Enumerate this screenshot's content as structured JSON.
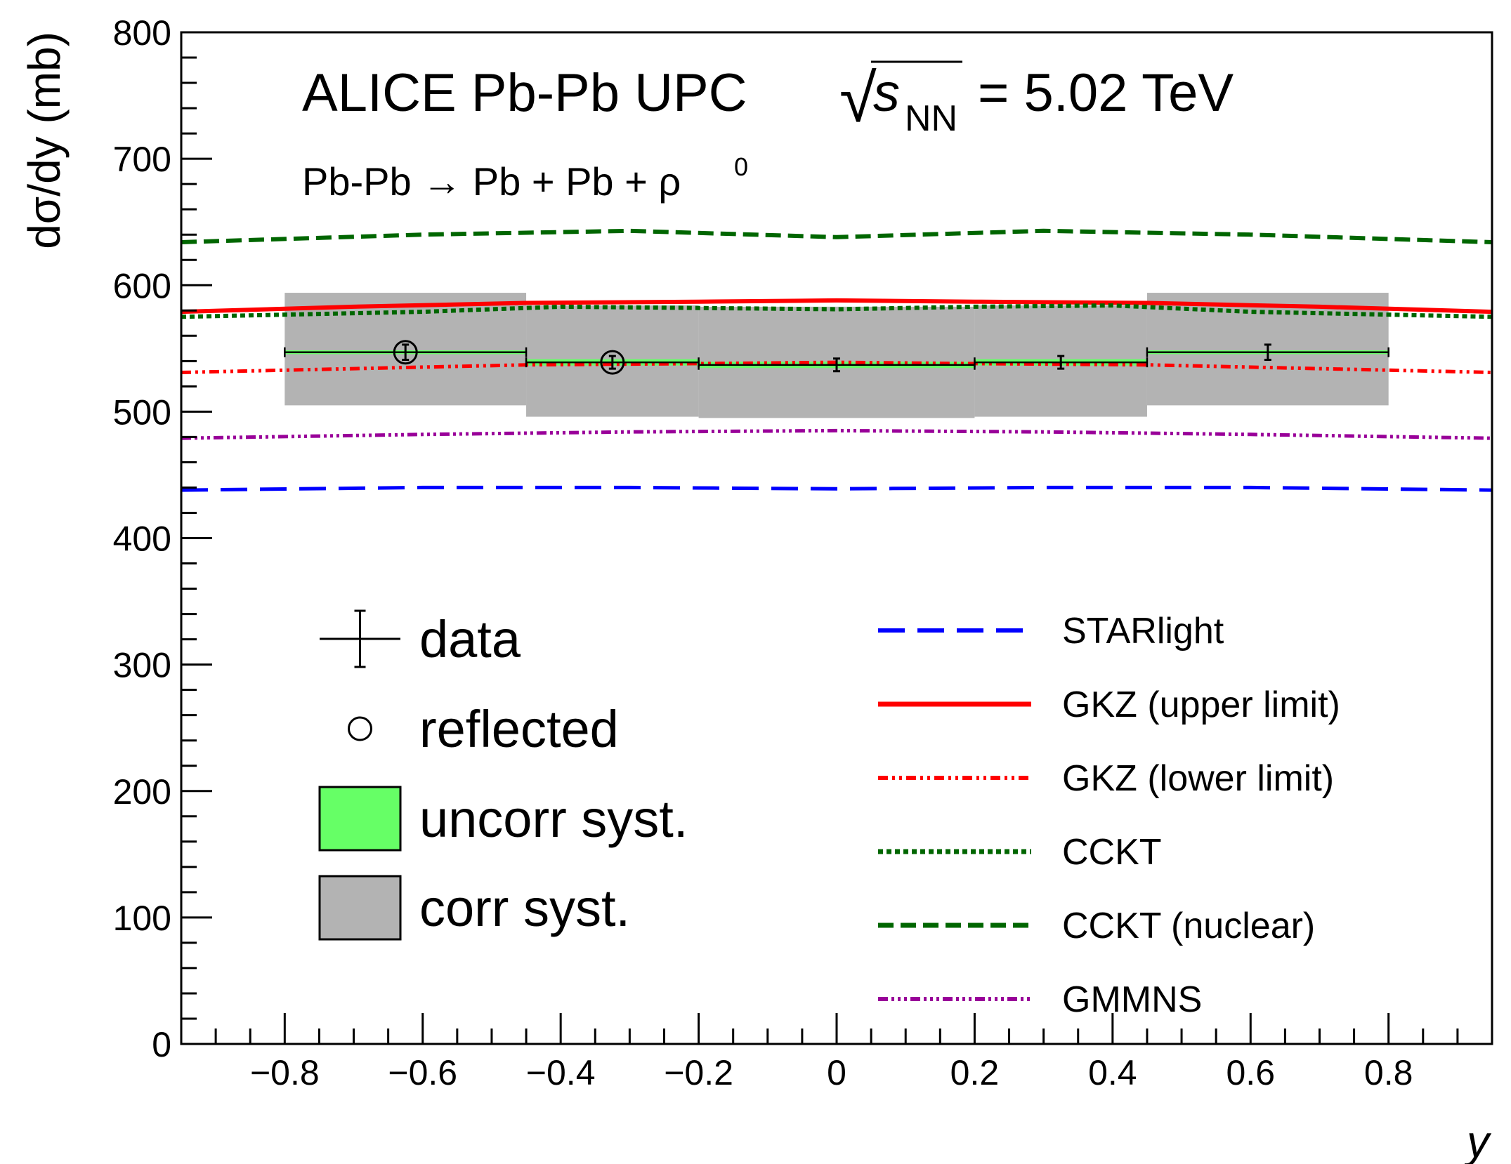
{
  "chart_data": {
    "type": "line",
    "title_main": "ALICE Pb-Pb UPC",
    "title_energy": "= 5.02 TeV",
    "title_sqrt_symbol": "√",
    "title_s": "s",
    "title_nn": "NN",
    "subtitle_main": "Pb-Pb → Pb + Pb + ρ",
    "subtitle_sup": "0",
    "xlabel": "y",
    "ylabel": "dσ/dy (mb)",
    "xlim": [
      -0.95,
      0.95
    ],
    "ylim": [
      0,
      800
    ],
    "x_tick_labels": [
      "−0.8",
      "−0.6",
      "−0.4",
      "−0.2",
      "0",
      "0.2",
      "0.4",
      "0.6",
      "0.8"
    ],
    "x_tick_values": [
      -0.8,
      -0.6,
      -0.4,
      -0.2,
      0,
      0.2,
      0.4,
      0.6,
      0.8
    ],
    "y_tick_labels": [
      "0",
      "100",
      "200",
      "300",
      "400",
      "500",
      "600",
      "700",
      "800"
    ],
    "y_tick_values": [
      0,
      100,
      200,
      300,
      400,
      500,
      600,
      700,
      800
    ],
    "data_points": [
      {
        "x": -0.625,
        "xlo": -0.8,
        "xhi": -0.45,
        "y": 547,
        "stat": 6,
        "uncorr": 1.5,
        "corr_lo": 505,
        "corr_hi": 594,
        "reflected": true
      },
      {
        "x": -0.325,
        "xlo": -0.45,
        "xhi": -0.2,
        "y": 539,
        "stat": 5,
        "uncorr": 2.5,
        "corr_lo": 496,
        "corr_hi": 584,
        "reflected": true
      },
      {
        "x": 0.0,
        "xlo": -0.2,
        "xhi": 0.2,
        "y": 537,
        "stat": 5,
        "uncorr": 2.5,
        "corr_lo": 495,
        "corr_hi": 583,
        "reflected": false
      },
      {
        "x": 0.325,
        "xlo": 0.2,
        "xhi": 0.45,
        "y": 539,
        "stat": 5,
        "uncorr": 2.5,
        "corr_lo": 496,
        "corr_hi": 584,
        "reflected": false
      },
      {
        "x": 0.625,
        "xlo": 0.45,
        "xhi": 0.8,
        "y": 547,
        "stat": 6,
        "uncorr": 1.5,
        "corr_lo": 505,
        "corr_hi": 594,
        "reflected": false
      }
    ],
    "series": [
      {
        "name": "STARlight",
        "color": "#0000ff",
        "dash": "38,18",
        "width": 5,
        "x": [
          -0.95,
          -0.6,
          -0.3,
          0,
          0.3,
          0.6,
          0.95
        ],
        "y": [
          438,
          440,
          440,
          439,
          440,
          440,
          438
        ]
      },
      {
        "name": "GKZ (upper limit)",
        "color": "#ff0000",
        "dash": "",
        "width": 6,
        "x": [
          -0.95,
          -0.7,
          -0.45,
          -0.2,
          0,
          0.2,
          0.45,
          0.7,
          0.95
        ],
        "y": [
          579,
          583,
          586,
          587,
          588,
          587,
          586,
          583,
          579
        ]
      },
      {
        "name": "GKZ (lower limit)",
        "color": "#ff0000",
        "dash": "14,6,4,6,4,6",
        "width": 5,
        "x": [
          -0.95,
          -0.7,
          -0.45,
          -0.2,
          0,
          0.2,
          0.45,
          0.7,
          0.95
        ],
        "y": [
          531,
          534,
          537,
          538,
          539,
          538,
          537,
          534,
          531
        ]
      },
      {
        "name": "CCKT",
        "color": "#006600",
        "dash": "7,5",
        "width": 6,
        "x": [
          -0.95,
          -0.6,
          -0.4,
          -0.2,
          0,
          0.2,
          0.4,
          0.6,
          0.95
        ],
        "y": [
          575,
          579,
          583,
          582,
          581,
          583,
          584,
          579,
          575
        ]
      },
      {
        "name": "CCKT (nuclear)",
        "color": "#006600",
        "dash": "22,10",
        "width": 6,
        "x": [
          -0.95,
          -0.6,
          -0.3,
          0,
          0.3,
          0.6,
          0.95
        ],
        "y": [
          634,
          640,
          643,
          638,
          643,
          640,
          634
        ]
      },
      {
        "name": "GMMNS",
        "color": "#990099",
        "dash": "14,5,4,5,4,5,4,5",
        "width": 5,
        "x": [
          -0.95,
          -0.6,
          -0.3,
          0,
          0.3,
          0.6,
          0.95
        ],
        "y": [
          479,
          482,
          484,
          485,
          484,
          482,
          479
        ]
      }
    ],
    "legend_left": [
      {
        "label": "data",
        "symbol": "errorbar"
      },
      {
        "label": "reflected",
        "symbol": "circle"
      },
      {
        "label": "uncorr syst.",
        "symbol": "box",
        "fill": "#66ff66"
      },
      {
        "label": "corr syst.",
        "symbol": "box",
        "fill": "#b3b3b3"
      }
    ],
    "colors": {
      "uncorr_fill": "#66ff66",
      "corr_fill": "#b3b3b3",
      "data": "#000000"
    }
  }
}
